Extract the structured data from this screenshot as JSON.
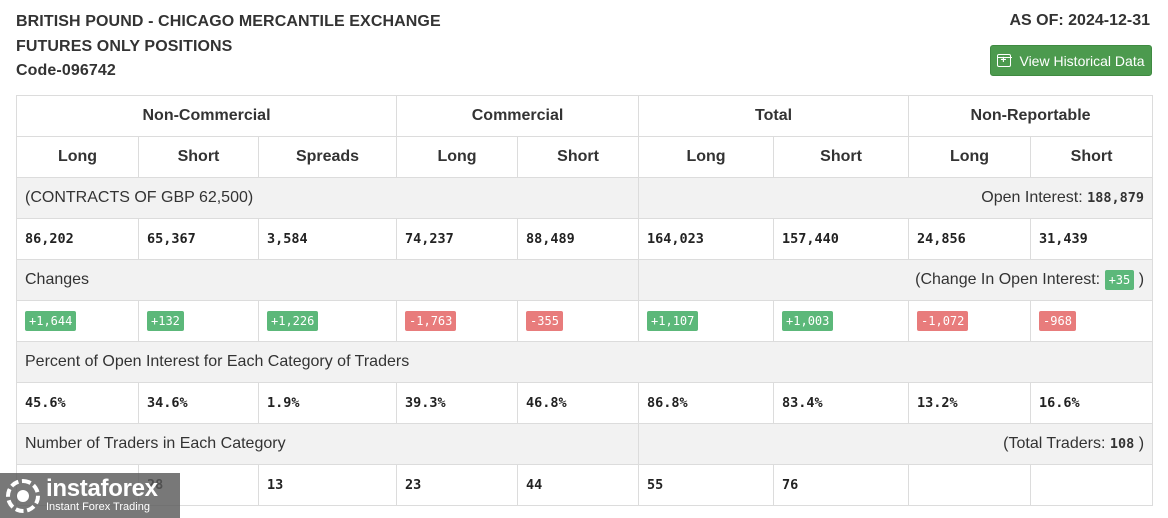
{
  "header": {
    "title_line1": "BRITISH POUND - CHICAGO MERCANTILE EXCHANGE",
    "title_line2": "FUTURES ONLY POSITIONS",
    "code": "Code-096742",
    "as_of": "AS OF: 2024-12-31",
    "history_button": "View Historical Data",
    "history_icon": "calendar-plus-icon"
  },
  "table": {
    "groups": [
      "Non-Commercial",
      "Commercial",
      "Total",
      "Non-Reportable"
    ],
    "columns": [
      "Long",
      "Short",
      "Spreads",
      "Long",
      "Short",
      "Long",
      "Short",
      "Long",
      "Short"
    ],
    "contracts_label": "(CONTRACTS OF GBP 62,500)",
    "open_interest_label": "Open Interest:",
    "open_interest_value": "188,879",
    "positions": [
      "86,202",
      "65,367",
      "3,584",
      "74,237",
      "88,489",
      "164,023",
      "157,440",
      "24,856",
      "31,439"
    ],
    "changes_label": "Changes",
    "change_oi_label": "(Change In Open Interest:",
    "change_oi_value": "+35",
    "change_oi_close": ")",
    "changes": [
      "+1,644",
      "+132",
      "+1,226",
      "-1,763",
      "-355",
      "+1,107",
      "+1,003",
      "-1,072",
      "-968"
    ],
    "percent_label": "Percent of Open Interest for Each Category of Traders",
    "percents": [
      "45.6%",
      "34.6%",
      "1.9%",
      "39.3%",
      "46.8%",
      "86.8%",
      "83.4%",
      "13.2%",
      "16.6%"
    ],
    "traders_label": "Number of Traders in Each Category",
    "total_traders_label": "(Total Traders:",
    "total_traders_value": "108",
    "total_traders_close": ")",
    "traders": [
      "",
      "28",
      "13",
      "23",
      "44",
      "55",
      "76",
      "",
      ""
    ]
  },
  "watermark": {
    "name": "instaforex",
    "tagline": "Instant Forex Trading"
  },
  "colors": {
    "button_green": "#4c9a4e",
    "positive": "#5cb87a",
    "negative": "#e87c7c",
    "section_bg": "#f2f2f2"
  }
}
